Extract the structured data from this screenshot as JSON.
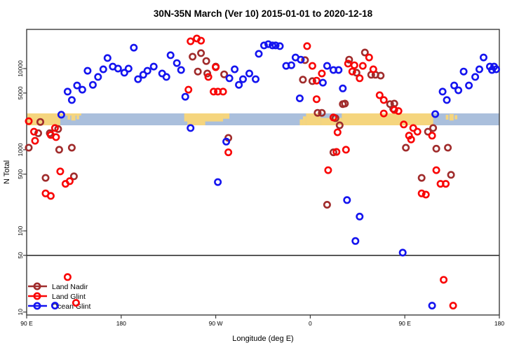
{
  "chart_data": {
    "type": "scatter",
    "title": "30N-35N March (Ver 10)   2015-01-01 to 2020-12-18",
    "xlabel": "Longitude (deg E)",
    "ylabel": "N Total",
    "x_axis": {
      "note": "longitude in deg E, axis runs 90E eastward around globe to 180 (90..540)",
      "range": [
        90,
        540
      ],
      "ticks": [
        {
          "v": 90,
          "label": "90 E"
        },
        {
          "v": 180,
          "label": "180"
        },
        {
          "v": 270,
          "label": "90 W"
        },
        {
          "v": 360,
          "label": "0"
        },
        {
          "v": 450,
          "label": "90 E"
        },
        {
          "v": 540,
          "label": "180"
        }
      ]
    },
    "y_axis": {
      "scale": "log",
      "range": [
        9.2,
        30400
      ],
      "ticks": [
        10,
        50,
        100,
        500,
        1000,
        5000,
        10000
      ]
    },
    "hline_y": 50,
    "marker": {
      "shape": "open-circle",
      "radius": 4.2,
      "stroke_width": 2.6
    },
    "colors": {
      "axis": "#3c3c3c",
      "hline": "#333333"
    },
    "series": [
      {
        "name": "Land Nadir",
        "color": "#A02C2C",
        "points": [
          [
            103,
            2200
          ],
          [
            101,
            1600
          ],
          [
            92,
            1060
          ],
          [
            120,
            1800
          ],
          [
            112,
            1600
          ],
          [
            121,
            1000
          ],
          [
            133,
            1060
          ],
          [
            108,
            450
          ],
          [
            135,
            470
          ],
          [
            248,
            14000
          ],
          [
            256,
            15500
          ],
          [
            261,
            12400
          ],
          [
            253,
            9200
          ],
          [
            262,
            8700
          ],
          [
            270,
            10600
          ],
          [
            278,
            8500
          ],
          [
            282,
            1400
          ],
          [
            353,
            7300
          ],
          [
            355,
            12700
          ],
          [
            362,
            7000
          ],
          [
            367,
            2850
          ],
          [
            371,
            2850
          ],
          [
            376,
            210
          ],
          [
            382,
            930
          ],
          [
            384,
            2450
          ],
          [
            388,
            2000
          ],
          [
            391,
            3650
          ],
          [
            393,
            3700
          ],
          [
            397,
            12900
          ],
          [
            404,
            8900
          ],
          [
            412,
            15800
          ],
          [
            418,
            8400
          ],
          [
            422,
            8400
          ],
          [
            427,
            8200
          ],
          [
            436,
            3650
          ],
          [
            439,
            3200
          ],
          [
            440,
            3700
          ],
          [
            451,
            1060
          ],
          [
            466,
            450
          ],
          [
            472,
            1670
          ],
          [
            477,
            1850
          ],
          [
            480,
            1030
          ],
          [
            491,
            1060
          ],
          [
            494,
            490
          ]
        ]
      },
      {
        "name": "Land Glint",
        "color": "#F90606",
        "points": [
          [
            92,
            2250
          ],
          [
            97,
            1670
          ],
          [
            98,
            1290
          ],
          [
            108,
            290
          ],
          [
            113,
            270
          ],
          [
            113,
            1520
          ],
          [
            117,
            1850
          ],
          [
            118,
            1430
          ],
          [
            122,
            540
          ],
          [
            127,
            380
          ],
          [
            131,
            410
          ],
          [
            129,
            27
          ],
          [
            137,
            13
          ],
          [
            244,
            5500
          ],
          [
            246,
            21700
          ],
          [
            252,
            23500
          ],
          [
            256,
            22100
          ],
          [
            263,
            7900
          ],
          [
            268,
            5200
          ],
          [
            270,
            10400
          ],
          [
            272,
            5200
          ],
          [
            277,
            5200
          ],
          [
            282,
            930
          ],
          [
            357,
            18900
          ],
          [
            362,
            10800
          ],
          [
            366,
            7100
          ],
          [
            366,
            4200
          ],
          [
            371,
            8700
          ],
          [
            377,
            560
          ],
          [
            382,
            2500
          ],
          [
            385,
            940
          ],
          [
            386,
            1640
          ],
          [
            394,
            1000
          ],
          [
            396,
            11500
          ],
          [
            400,
            9200
          ],
          [
            402,
            11000
          ],
          [
            407,
            7600
          ],
          [
            410,
            10800
          ],
          [
            416,
            13700
          ],
          [
            420,
            9800
          ],
          [
            426,
            4700
          ],
          [
            430,
            4100
          ],
          [
            430,
            2800
          ],
          [
            440,
            3100
          ],
          [
            444,
            3000
          ],
          [
            449,
            2050
          ],
          [
            454,
            1490
          ],
          [
            456,
            1340
          ],
          [
            458,
            1850
          ],
          [
            462,
            1670
          ],
          [
            466,
            290
          ],
          [
            470,
            280
          ],
          [
            476,
            1490
          ],
          [
            480,
            560
          ],
          [
            484,
            380
          ],
          [
            489,
            380
          ],
          [
            487,
            25
          ],
          [
            496,
            12
          ]
        ]
      },
      {
        "name": "Ocean Glint",
        "color": "#1414EF",
        "points": [
          [
            117,
            12
          ],
          [
            123,
            2700
          ],
          [
            129,
            5200
          ],
          [
            133,
            4100
          ],
          [
            138,
            6200
          ],
          [
            143,
            5500
          ],
          [
            148,
            9400
          ],
          [
            153,
            6300
          ],
          [
            158,
            7900
          ],
          [
            163,
            9800
          ],
          [
            167,
            13500
          ],
          [
            172,
            10600
          ],
          [
            177,
            10000
          ],
          [
            183,
            8900
          ],
          [
            187,
            10000
          ],
          [
            192,
            18100
          ],
          [
            196,
            7400
          ],
          [
            201,
            8400
          ],
          [
            205,
            9400
          ],
          [
            211,
            10600
          ],
          [
            219,
            8700
          ],
          [
            223,
            7900
          ],
          [
            227,
            14600
          ],
          [
            233,
            11700
          ],
          [
            237,
            9600
          ],
          [
            241,
            4500
          ],
          [
            246,
            1850
          ],
          [
            272,
            400
          ],
          [
            280,
            1260
          ],
          [
            283,
            7600
          ],
          [
            288,
            9800
          ],
          [
            292,
            6300
          ],
          [
            296,
            7400
          ],
          [
            302,
            8700
          ],
          [
            308,
            7400
          ],
          [
            311,
            15200
          ],
          [
            316,
            19300
          ],
          [
            320,
            20000
          ],
          [
            324,
            19300
          ],
          [
            327,
            19300
          ],
          [
            331,
            18900
          ],
          [
            337,
            10800
          ],
          [
            342,
            11000
          ],
          [
            346,
            13700
          ],
          [
            350,
            4300
          ],
          [
            351,
            12900
          ],
          [
            372,
            6700
          ],
          [
            376,
            10800
          ],
          [
            382,
            9600
          ],
          [
            387,
            9600
          ],
          [
            391,
            5700
          ],
          [
            395,
            240
          ],
          [
            403,
            75
          ],
          [
            407,
            150
          ],
          [
            448,
            54
          ],
          [
            476,
            12
          ],
          [
            479,
            2750
          ],
          [
            486,
            5200
          ],
          [
            490,
            4100
          ],
          [
            497,
            6200
          ],
          [
            501,
            5400
          ],
          [
            506,
            9200
          ],
          [
            511,
            6200
          ],
          [
            517,
            7900
          ],
          [
            521,
            9800
          ],
          [
            525,
            13700
          ],
          [
            531,
            10600
          ],
          [
            533,
            9600
          ],
          [
            535,
            10600
          ],
          [
            537,
            9800
          ]
        ]
      }
    ],
    "map_band": {
      "note": "coastline strip for 30N-35N drawn across the plot",
      "y_value_range": [
        2000,
        2800
      ],
      "ocean_color": "#AABFDC",
      "land_color": "#F5D57E",
      "land_segments": [
        {
          "from": 90,
          "to": 122,
          "top": 0,
          "h": 1
        },
        {
          "from": 122,
          "to": 142,
          "top": 0,
          "h": 0.18
        },
        {
          "from": 129,
          "to": 131.5,
          "top": 0.12,
          "h": 0.4
        },
        {
          "from": 132.5,
          "to": 136.5,
          "top": 0.05,
          "h": 0.55
        },
        {
          "from": 137.5,
          "to": 140,
          "top": 0.15,
          "h": 0.35
        },
        {
          "from": 240,
          "to": 277,
          "top": 0,
          "h": 0.68
        },
        {
          "from": 243,
          "to": 260,
          "top": 0.5,
          "h": 0.5
        },
        {
          "from": 277,
          "to": 283,
          "top": 0,
          "h": 0.45
        },
        {
          "from": 350,
          "to": 353,
          "top": 0.5,
          "h": 0.5
        },
        {
          "from": 353,
          "to": 356,
          "top": 0.25,
          "h": 0.75
        },
        {
          "from": 356,
          "to": 370,
          "top": 0,
          "h": 1
        },
        {
          "from": 370,
          "to": 390,
          "top": 0.38,
          "h": 0.62
        },
        {
          "from": 390,
          "to": 477,
          "top": 0,
          "h": 1
        },
        {
          "from": 489,
          "to": 491.5,
          "top": 0.12,
          "h": 0.4
        },
        {
          "from": 492.5,
          "to": 496.5,
          "top": 0.05,
          "h": 0.55
        },
        {
          "from": 497.5,
          "to": 500,
          "top": 0.15,
          "h": 0.35
        }
      ]
    },
    "legend": {
      "position": "bottom-left"
    }
  }
}
